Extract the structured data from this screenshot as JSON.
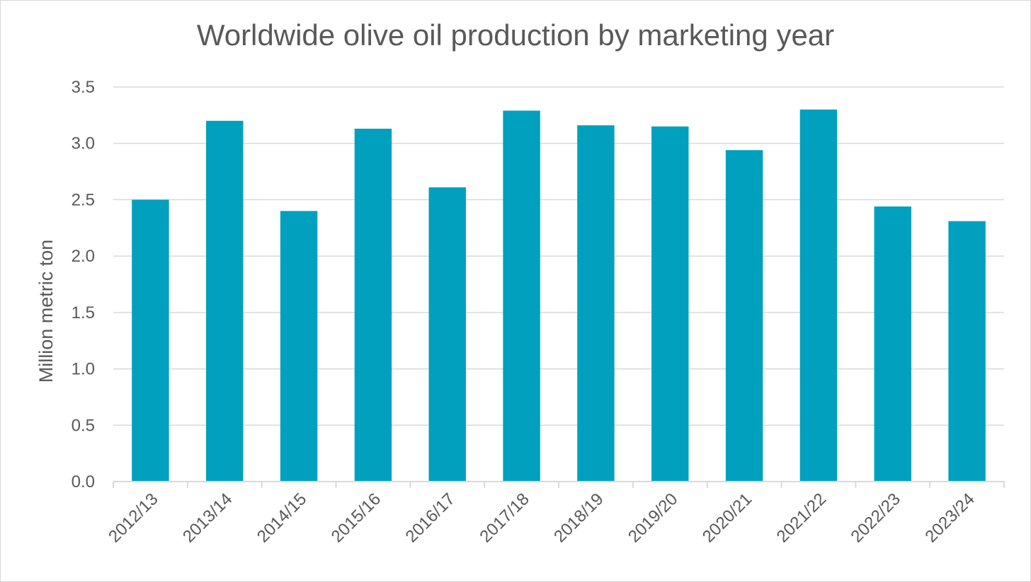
{
  "chart_data": {
    "type": "bar",
    "title": "Worldwide olive oil production by marketing year",
    "xlabel": "",
    "ylabel": "Million metric ton",
    "categories": [
      "2012/13",
      "2013/14",
      "2014/15",
      "2015/16",
      "2016/17",
      "2017/18",
      "2018/19",
      "2019/20",
      "2020/21",
      "2021/22",
      "2022/23",
      "2023/24"
    ],
    "values": [
      2.5,
      3.2,
      2.4,
      3.13,
      2.61,
      3.29,
      3.16,
      3.15,
      2.94,
      3.3,
      2.44,
      2.31
    ],
    "ylim": [
      0,
      3.5
    ],
    "yticks": [
      "0.0",
      "0.5",
      "1.0",
      "1.5",
      "2.0",
      "2.5",
      "3.0",
      "3.5"
    ],
    "grid": true,
    "legend": "none",
    "colors": {
      "bar": "#00A0BE",
      "grid": "#d9d9d9",
      "text": "#595959"
    }
  }
}
